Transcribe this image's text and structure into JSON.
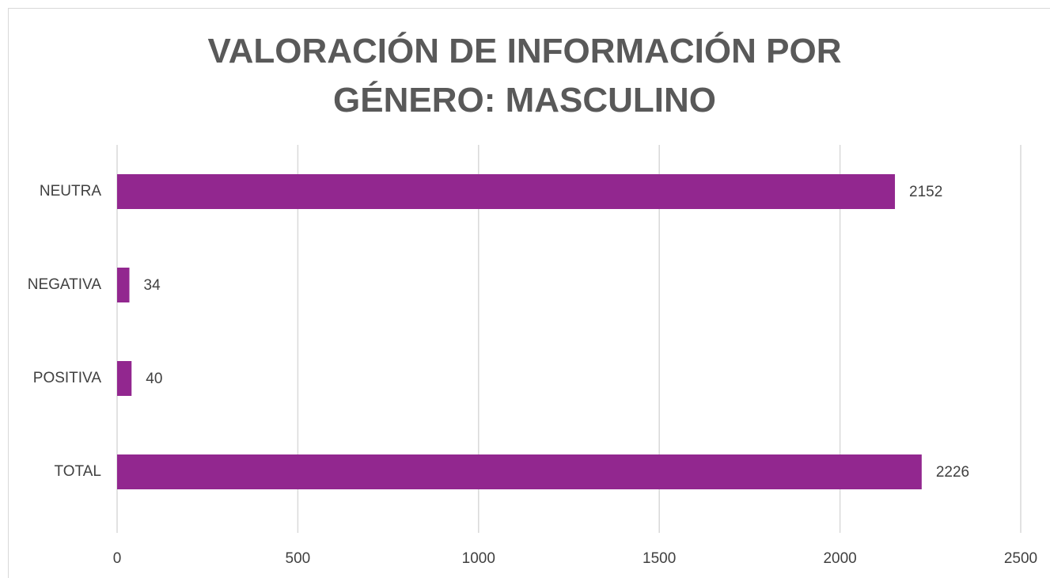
{
  "chart_data": {
    "type": "barh",
    "title": "VALORACIÓN DE INFORMACIÓN POR GÉNERO: MASCULINO",
    "categories": [
      "NEUTRA",
      "NEGATIVA",
      "POSITIVA",
      "TOTAL"
    ],
    "values": [
      2152,
      34,
      40,
      2226
    ],
    "color": "#92278f",
    "xlim": [
      0,
      2500
    ],
    "xticks": [
      0,
      500,
      1000,
      1500,
      2000,
      2500
    ],
    "grid": true
  }
}
